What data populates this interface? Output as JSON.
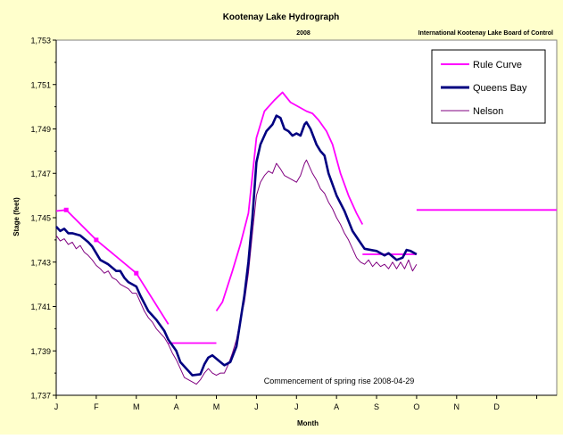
{
  "colors": {
    "background": "#FFFFCC",
    "plot_area": "#FFFFFF",
    "rule_curve": "#FF00FF",
    "queens_bay": "#000080",
    "nelson": "#800080"
  },
  "chart_data": {
    "type": "line",
    "title": "Kootenay Lake Hydrograph",
    "subtitle": "2008",
    "source_note": "International Kootenay Lake Board of Control",
    "annotation": "Commencement of spring rise 2008-04-29",
    "xlabel": "Month",
    "ylabel": "Stage (feet)",
    "x_tick_labels": [
      "J",
      "F",
      "M",
      "A",
      "M",
      "J",
      "J",
      "A",
      "S",
      "O",
      "N",
      "D"
    ],
    "y_tick_labels": [
      "1,737",
      "1,739",
      "1,741",
      "1,743",
      "1,745",
      "1,747",
      "1,749",
      "1,751",
      "1,753"
    ],
    "ylim": [
      1737,
      1753
    ],
    "xlim_month_index": [
      0,
      12.5
    ],
    "grid": false,
    "legend_position": "top-right",
    "series": [
      {
        "name": "Rule Curve",
        "color": "#FF00FF",
        "segments": [
          [
            [
              0.0,
              1745.3
            ],
            [
              0.25,
              1745.35
            ],
            [
              1.0,
              1744.0
            ],
            [
              2.0,
              1742.5
            ],
            [
              2.8,
              1740.2
            ]
          ],
          [
            [
              2.8,
              1739.35
            ],
            [
              4.0,
              1739.35
            ]
          ],
          [
            [
              4.0,
              1740.8
            ],
            [
              4.15,
              1741.2
            ],
            [
              4.4,
              1742.6
            ],
            [
              4.6,
              1743.8
            ],
            [
              4.8,
              1745.2
            ],
            [
              5.0,
              1748.6
            ],
            [
              5.2,
              1749.8
            ],
            [
              5.45,
              1750.3
            ],
            [
              5.65,
              1750.65
            ],
            [
              5.85,
              1750.2
            ],
            [
              6.0,
              1750.05
            ],
            [
              6.25,
              1749.8
            ],
            [
              6.4,
              1749.7
            ],
            [
              6.55,
              1749.4
            ],
            [
              6.75,
              1748.9
            ],
            [
              6.9,
              1748.3
            ],
            [
              7.1,
              1747.0
            ],
            [
              7.3,
              1746.0
            ],
            [
              7.5,
              1745.2
            ],
            [
              7.65,
              1744.7
            ]
          ],
          [
            [
              7.65,
              1743.35
            ],
            [
              9.0,
              1743.35
            ]
          ],
          [
            [
              9.0,
              1745.35
            ],
            [
              12.5,
              1745.35
            ]
          ]
        ],
        "markers": [
          [
            0.25,
            1745.35
          ],
          [
            1.0,
            1744.0
          ],
          [
            2.0,
            1742.5
          ]
        ]
      },
      {
        "name": "Queens Bay",
        "color": "#000080",
        "values": [
          [
            0.0,
            1744.6
          ],
          [
            0.1,
            1744.4
          ],
          [
            0.2,
            1744.5
          ],
          [
            0.3,
            1744.3
          ],
          [
            0.4,
            1744.3
          ],
          [
            0.6,
            1744.2
          ],
          [
            0.8,
            1743.9
          ],
          [
            0.9,
            1743.7
          ],
          [
            1.0,
            1743.4
          ],
          [
            1.1,
            1743.1
          ],
          [
            1.3,
            1742.9
          ],
          [
            1.5,
            1742.6
          ],
          [
            1.6,
            1742.6
          ],
          [
            1.7,
            1742.3
          ],
          [
            1.8,
            1742.1
          ],
          [
            1.9,
            1742.0
          ],
          [
            2.0,
            1741.9
          ],
          [
            2.1,
            1741.5
          ],
          [
            2.3,
            1740.8
          ],
          [
            2.5,
            1740.4
          ],
          [
            2.7,
            1739.9
          ],
          [
            2.8,
            1739.5
          ],
          [
            3.0,
            1739.0
          ],
          [
            3.1,
            1738.5
          ],
          [
            3.3,
            1738.1
          ],
          [
            3.4,
            1737.9
          ],
          [
            3.6,
            1737.95
          ],
          [
            3.7,
            1738.4
          ],
          [
            3.8,
            1738.7
          ],
          [
            3.9,
            1738.8
          ],
          [
            4.1,
            1738.5
          ],
          [
            4.2,
            1738.35
          ],
          [
            4.35,
            1738.5
          ],
          [
            4.5,
            1739.2
          ],
          [
            4.7,
            1741.5
          ],
          [
            4.8,
            1743.0
          ],
          [
            4.9,
            1745.0
          ],
          [
            5.0,
            1747.5
          ],
          [
            5.1,
            1748.3
          ],
          [
            5.25,
            1748.9
          ],
          [
            5.4,
            1749.2
          ],
          [
            5.5,
            1749.6
          ],
          [
            5.6,
            1749.5
          ],
          [
            5.7,
            1749.0
          ],
          [
            5.8,
            1748.9
          ],
          [
            5.9,
            1748.7
          ],
          [
            6.0,
            1748.8
          ],
          [
            6.1,
            1748.7
          ],
          [
            6.2,
            1749.2
          ],
          [
            6.25,
            1749.3
          ],
          [
            6.35,
            1749.0
          ],
          [
            6.5,
            1748.3
          ],
          [
            6.6,
            1748.0
          ],
          [
            6.7,
            1747.8
          ],
          [
            6.8,
            1747.0
          ],
          [
            7.0,
            1746.0
          ],
          [
            7.2,
            1745.3
          ],
          [
            7.4,
            1744.4
          ],
          [
            7.55,
            1744.0
          ],
          [
            7.7,
            1743.6
          ],
          [
            8.0,
            1743.5
          ],
          [
            8.2,
            1743.3
          ],
          [
            8.3,
            1743.4
          ],
          [
            8.5,
            1743.1
          ],
          [
            8.65,
            1743.2
          ],
          [
            8.75,
            1743.55
          ],
          [
            8.85,
            1743.5
          ],
          [
            9.0,
            1743.35
          ]
        ]
      },
      {
        "name": "Nelson",
        "color": "#800080",
        "values": [
          [
            0.0,
            1744.2
          ],
          [
            0.1,
            1743.95
          ],
          [
            0.2,
            1744.05
          ],
          [
            0.3,
            1743.8
          ],
          [
            0.4,
            1743.9
          ],
          [
            0.5,
            1743.6
          ],
          [
            0.6,
            1743.75
          ],
          [
            0.7,
            1743.45
          ],
          [
            0.8,
            1743.3
          ],
          [
            0.9,
            1743.1
          ],
          [
            1.0,
            1742.85
          ],
          [
            1.1,
            1742.7
          ],
          [
            1.2,
            1742.5
          ],
          [
            1.3,
            1742.6
          ],
          [
            1.4,
            1742.3
          ],
          [
            1.5,
            1742.2
          ],
          [
            1.6,
            1742.0
          ],
          [
            1.7,
            1741.9
          ],
          [
            1.8,
            1741.8
          ],
          [
            1.9,
            1741.6
          ],
          [
            2.0,
            1741.6
          ],
          [
            2.1,
            1741.2
          ],
          [
            2.2,
            1740.8
          ],
          [
            2.3,
            1740.5
          ],
          [
            2.4,
            1740.3
          ],
          [
            2.5,
            1740.0
          ],
          [
            2.6,
            1739.8
          ],
          [
            2.7,
            1739.6
          ],
          [
            2.8,
            1739.3
          ],
          [
            2.9,
            1738.9
          ],
          [
            3.0,
            1738.6
          ],
          [
            3.1,
            1738.2
          ],
          [
            3.2,
            1737.8
          ],
          [
            3.3,
            1737.7
          ],
          [
            3.4,
            1737.6
          ],
          [
            3.5,
            1737.5
          ],
          [
            3.6,
            1737.7
          ],
          [
            3.7,
            1738.0
          ],
          [
            3.8,
            1738.2
          ],
          [
            3.9,
            1738.0
          ],
          [
            4.0,
            1737.9
          ],
          [
            4.1,
            1738.0
          ],
          [
            4.2,
            1738.0
          ],
          [
            4.3,
            1738.4
          ],
          [
            4.4,
            1738.9
          ],
          [
            4.5,
            1739.5
          ],
          [
            4.6,
            1740.4
          ],
          [
            4.7,
            1741.2
          ],
          [
            4.8,
            1742.5
          ],
          [
            4.9,
            1744.3
          ],
          [
            5.0,
            1746.0
          ],
          [
            5.1,
            1746.6
          ],
          [
            5.2,
            1746.9
          ],
          [
            5.3,
            1747.1
          ],
          [
            5.4,
            1747.0
          ],
          [
            5.5,
            1747.45
          ],
          [
            5.6,
            1747.2
          ],
          [
            5.7,
            1746.9
          ],
          [
            5.8,
            1746.8
          ],
          [
            5.9,
            1746.7
          ],
          [
            6.0,
            1746.6
          ],
          [
            6.1,
            1746.9
          ],
          [
            6.2,
            1747.45
          ],
          [
            6.25,
            1747.6
          ],
          [
            6.3,
            1747.4
          ],
          [
            6.4,
            1747.0
          ],
          [
            6.5,
            1746.7
          ],
          [
            6.6,
            1746.3
          ],
          [
            6.7,
            1746.1
          ],
          [
            6.8,
            1745.7
          ],
          [
            6.9,
            1745.4
          ],
          [
            7.0,
            1745.0
          ],
          [
            7.1,
            1744.7
          ],
          [
            7.2,
            1744.3
          ],
          [
            7.3,
            1744.0
          ],
          [
            7.4,
            1743.6
          ],
          [
            7.5,
            1743.2
          ],
          [
            7.6,
            1743.0
          ],
          [
            7.7,
            1742.9
          ],
          [
            7.8,
            1743.1
          ],
          [
            7.9,
            1742.8
          ],
          [
            8.0,
            1743.0
          ],
          [
            8.1,
            1742.8
          ],
          [
            8.2,
            1742.9
          ],
          [
            8.3,
            1742.7
          ],
          [
            8.4,
            1743.0
          ],
          [
            8.5,
            1742.7
          ],
          [
            8.6,
            1743.0
          ],
          [
            8.7,
            1742.7
          ],
          [
            8.8,
            1743.1
          ],
          [
            8.9,
            1742.6
          ],
          [
            9.0,
            1742.9
          ]
        ]
      }
    ]
  }
}
